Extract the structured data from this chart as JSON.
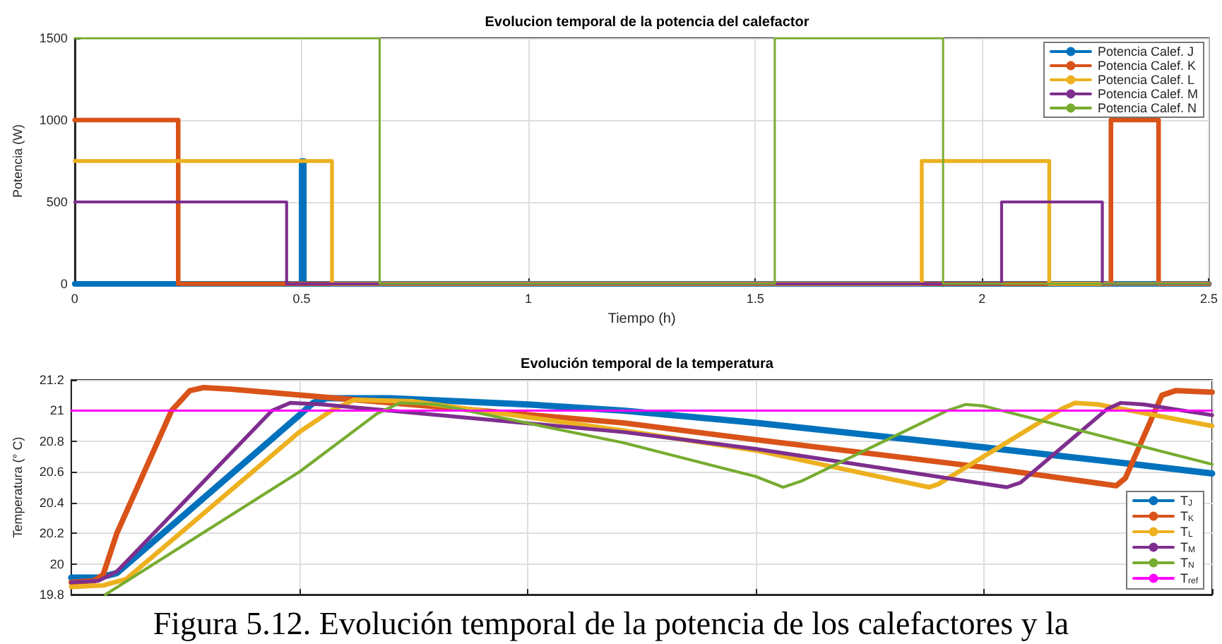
{
  "chart_data": [
    {
      "type": "step",
      "title": "Evolucion temporal de la potencia del calefactor",
      "xlabel": "Tiempo (h)",
      "ylabel": "Potencia (W)",
      "xlim": [
        0,
        2.5
      ],
      "xticks": [
        0,
        0.5,
        1,
        1.5,
        2,
        2.5
      ],
      "ylim": [
        0,
        1500
      ],
      "yticks": [
        0,
        500,
        1000,
        1500
      ],
      "grid": true,
      "legend": "top right",
      "marker": "none",
      "series": [
        {
          "name": "Potencia Calef. J",
          "color": "#0072bd",
          "x": [
            0,
            0.5,
            0.505,
            2.5
          ],
          "values": [
            0,
            750,
            0,
            0
          ]
        },
        {
          "name": "Potencia Calef. K",
          "color": "#d95319",
          "x": [
            0,
            0.228,
            2.284,
            2.389,
            2.5
          ],
          "values": [
            1000,
            0,
            1000,
            0,
            0
          ]
        },
        {
          "name": "Potencia Calef. L",
          "color": "#edb120",
          "x": [
            0,
            0.567,
            1.867,
            2.148,
            2.5
          ],
          "values": [
            750,
            0,
            750,
            0,
            0
          ]
        },
        {
          "name": "Potencia Calef. M",
          "color": "#7e2f8e",
          "x": [
            0,
            0.467,
            2.043,
            2.265,
            2.5
          ],
          "values": [
            500,
            0,
            500,
            0,
            0
          ]
        },
        {
          "name": "Potencia Calef. N",
          "color": "#77ac30",
          "x": [
            0,
            0.672,
            1.543,
            1.914,
            2.5
          ],
          "values": [
            1500,
            0,
            1500,
            0,
            0
          ]
        }
      ]
    },
    {
      "type": "line",
      "title": "Evolución temporal de la temperatura",
      "ylabel": "Temperatura (° C)",
      "xlim": [
        0,
        2.5
      ],
      "xticks": [
        0,
        0.5,
        1,
        1.5,
        2,
        2.5
      ],
      "ylim": [
        19.8,
        21.2
      ],
      "yticks": [
        19.8,
        20,
        20.2,
        20.4,
        20.6,
        20.8,
        21,
        21.2
      ],
      "tick_labels": "y",
      "grid": true,
      "legend": "bottom right",
      "marker": "none",
      "annotations": [
        "Figura 5.12. Evolución temporal de la potencia de los calefactores y la"
      ],
      "series": [
        {
          "name": "T$_{J}$",
          "color": "#0072bd",
          "x": [
            0,
            0.06,
            0.1,
            0.5,
            0.53,
            0.56,
            0.7,
            1.0,
            1.21,
            1.5,
            2.0,
            2.33,
            2.5
          ],
          "values": [
            19.91,
            19.91,
            19.94,
            20.97,
            21.05,
            21.08,
            21.08,
            21.04,
            21.0,
            20.92,
            20.76,
            20.65,
            20.59
          ]
        },
        {
          "name": "T$_{K}$",
          "color": "#d95319",
          "x": [
            0,
            0.05,
            0.07,
            0.1,
            0.22,
            0.26,
            0.29,
            0.35,
            1.21,
            1.5,
            2.0,
            2.29,
            2.31,
            2.39,
            2.42,
            2.5
          ],
          "values": [
            19.88,
            19.89,
            19.93,
            20.2,
            21.0,
            21.13,
            21.15,
            21.14,
            20.92,
            20.81,
            20.63,
            20.51,
            20.56,
            21.1,
            21.13,
            21.12
          ]
        },
        {
          "name": "T$_{L}$",
          "color": "#edb120",
          "x": [
            0,
            0.07,
            0.12,
            0.5,
            0.57,
            0.62,
            0.75,
            1.21,
            1.5,
            1.88,
            1.9,
            2.17,
            2.2,
            2.25,
            2.5
          ],
          "values": [
            19.85,
            19.86,
            19.9,
            20.86,
            21.0,
            21.07,
            21.06,
            20.87,
            20.74,
            20.5,
            20.52,
            21.01,
            21.05,
            21.04,
            20.9
          ]
        },
        {
          "name": "T$_{M}$",
          "color": "#7e2f8e",
          "x": [
            0,
            0.06,
            0.1,
            0.44,
            0.48,
            0.55,
            1.21,
            1.5,
            2.05,
            2.08,
            2.27,
            2.3,
            2.35,
            2.5
          ],
          "values": [
            19.88,
            19.89,
            19.95,
            21.0,
            21.05,
            21.04,
            20.86,
            20.75,
            20.5,
            20.53,
            21.01,
            21.05,
            21.04,
            20.97
          ]
        },
        {
          "name": "T$_{N}$",
          "color": "#77ac30",
          "x": [
            0.075,
            0.5,
            0.67,
            0.72,
            0.8,
            1.21,
            1.5,
            1.56,
            1.6,
            1.92,
            1.96,
            2.0,
            2.5
          ],
          "values": [
            19.8,
            20.6,
            20.98,
            21.05,
            21.04,
            20.79,
            20.57,
            20.5,
            20.54,
            21.0,
            21.04,
            21.03,
            20.65
          ]
        },
        {
          "name": "T$_{ref}$",
          "color": "#ff00ff",
          "x": [
            0,
            2.5
          ],
          "values": [
            21,
            21
          ]
        }
      ]
    }
  ]
}
